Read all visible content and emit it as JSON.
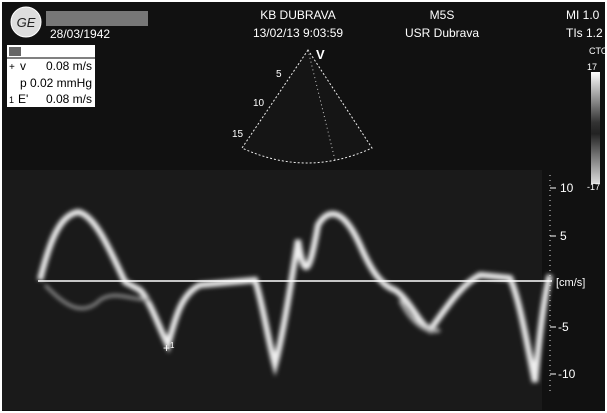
{
  "header": {
    "patient_dob": "28/03/1942",
    "hospital": "KB DUBRAVA",
    "datetime": "13/02/13 9:03:59",
    "probe": "M5S",
    "user": "USR Dubrava",
    "mi": "MI 1.0",
    "tis": "TIs 1.2"
  },
  "measurements": {
    "rows": [
      {
        "marker": "+",
        "label": "v",
        "value": "0.08 m/s"
      },
      {
        "label": "p",
        "value": "0.02 mmHg"
      },
      {
        "marker": "1",
        "label": "E'",
        "value": "0.08 m/s"
      }
    ]
  },
  "sector": {
    "focus": "V",
    "depths": [
      "5",
      "10",
      "15"
    ]
  },
  "color_bar": {
    "label": "CTO",
    "max": "17",
    "min": "-17"
  },
  "velocity_scale": {
    "ticks": [
      "10",
      "5",
      "-5",
      "-10"
    ],
    "unit": "[cm/s]"
  },
  "caliper_label": "1"
}
